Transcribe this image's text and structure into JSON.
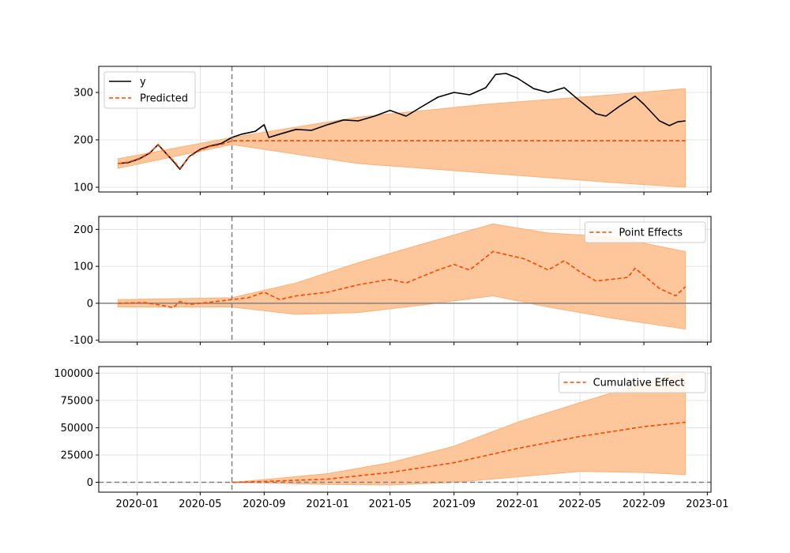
{
  "chart_data": [
    {
      "type": "line",
      "panel": "observed-vs-predicted",
      "title": "",
      "xlabel": "",
      "ylabel": "",
      "xlim": [
        "2019-10-19",
        "2023-01-08"
      ],
      "ylim": [
        90,
        355
      ],
      "yticks": [
        100,
        200,
        300
      ],
      "intervention_date": "2020-07-01",
      "grid": true,
      "legend": {
        "placement": "top-left",
        "entries": [
          "y",
          "Predicted"
        ]
      },
      "colors": {
        "y": "#000000",
        "predicted": "#ff4500",
        "band": "#fdc79b",
        "band_edge": "#fbb27a",
        "intervention": "#808080"
      },
      "series": [
        {
          "name": "y",
          "style": "solid",
          "x": [
            "2019-11-25",
            "2019-12-15",
            "2020-01-05",
            "2020-01-25",
            "2020-02-10",
            "2020-02-25",
            "2020-03-10",
            "2020-03-23",
            "2020-04-10",
            "2020-05-01",
            "2020-05-20",
            "2020-06-10",
            "2020-07-01",
            "2020-07-20",
            "2020-08-15",
            "2020-09-01",
            "2020-09-10",
            "2020-10-01",
            "2020-11-01",
            "2020-12-01",
            "2021-01-01",
            "2021-02-01",
            "2021-03-01",
            "2021-04-01",
            "2021-05-01",
            "2021-06-01",
            "2021-07-01",
            "2021-08-01",
            "2021-09-01",
            "2021-10-01",
            "2021-11-01",
            "2021-11-20",
            "2021-12-10",
            "2022-01-01",
            "2022-02-01",
            "2022-03-01",
            "2022-04-01",
            "2022-05-01",
            "2022-06-01",
            "2022-06-20",
            "2022-07-15",
            "2022-08-15",
            "2022-09-01",
            "2022-10-01",
            "2022-10-20",
            "2022-11-05",
            "2022-11-20"
          ],
          "values": [
            150,
            152,
            160,
            172,
            190,
            172,
            155,
            138,
            165,
            180,
            187,
            192,
            205,
            212,
            218,
            232,
            205,
            212,
            222,
            220,
            232,
            242,
            240,
            250,
            262,
            250,
            270,
            290,
            300,
            295,
            310,
            338,
            340,
            330,
            308,
            300,
            310,
            282,
            255,
            250,
            270,
            292,
            275,
            240,
            230,
            238,
            240
          ]
        },
        {
          "name": "Predicted",
          "style": "dashed",
          "x": [
            "2019-11-25",
            "2019-12-15",
            "2020-01-05",
            "2020-01-25",
            "2020-02-10",
            "2020-02-25",
            "2020-03-10",
            "2020-03-23",
            "2020-04-10",
            "2020-05-01",
            "2020-05-20",
            "2020-06-10",
            "2020-07-01",
            "2022-11-20"
          ],
          "values": [
            150,
            153,
            161,
            173,
            189,
            171,
            157,
            140,
            164,
            178,
            186,
            190,
            198,
            198
          ]
        }
      ],
      "band": {
        "x": [
          "2019-11-25",
          "2020-07-01",
          "2021-03-01",
          "2021-11-01",
          "2022-07-01",
          "2022-11-20"
        ],
        "lower": [
          140,
          190,
          150,
          130,
          110,
          100
        ],
        "upper": [
          160,
          205,
          248,
          275,
          295,
          308
        ]
      }
    },
    {
      "type": "line",
      "panel": "point-effects",
      "title": "",
      "xlabel": "",
      "ylabel": "",
      "xlim": [
        "2019-10-19",
        "2023-01-08"
      ],
      "ylim": [
        -105,
        235
      ],
      "yticks": [
        -100,
        0,
        100,
        200
      ],
      "intervention_date": "2020-07-01",
      "zero_line": true,
      "grid": true,
      "legend": {
        "placement": "top-right",
        "entries": [
          "Point Effects"
        ]
      },
      "series": [
        {
          "name": "Point Effects",
          "style": "dashed",
          "x": [
            "2019-11-25",
            "2020-01-15",
            "2020-02-15",
            "2020-03-10",
            "2020-03-23",
            "2020-04-10",
            "2020-05-15",
            "2020-07-01",
            "2020-08-01",
            "2020-09-01",
            "2020-10-01",
            "2020-11-01",
            "2021-01-01",
            "2021-03-01",
            "2021-05-01",
            "2021-06-01",
            "2021-08-01",
            "2021-09-01",
            "2021-10-01",
            "2021-11-15",
            "2021-12-15",
            "2022-01-15",
            "2022-03-01",
            "2022-04-01",
            "2022-05-01",
            "2022-06-01",
            "2022-08-01",
            "2022-08-15",
            "2022-10-01",
            "2022-11-01",
            "2022-11-20"
          ],
          "values": [
            0,
            2,
            -5,
            -12,
            5,
            -3,
            2,
            10,
            15,
            30,
            10,
            20,
            30,
            50,
            65,
            55,
            90,
            105,
            90,
            140,
            130,
            120,
            90,
            115,
            85,
            60,
            70,
            95,
            40,
            20,
            45
          ]
        }
      ],
      "band": {
        "x": [
          "2019-11-25",
          "2020-07-01",
          "2020-11-01",
          "2021-03-01",
          "2021-07-01",
          "2021-11-15",
          "2022-03-01",
          "2022-07-01",
          "2022-11-20"
        ],
        "lower": [
          -10,
          -10,
          -30,
          -25,
          -5,
          20,
          -10,
          -40,
          -70
        ],
        "upper": [
          10,
          15,
          55,
          110,
          160,
          215,
          190,
          180,
          140
        ]
      }
    },
    {
      "type": "line",
      "panel": "cumulative-effect",
      "title": "",
      "xlabel": "",
      "ylabel": "",
      "xlim": [
        "2019-10-19",
        "2023-01-08"
      ],
      "ylim": [
        -9000,
        106000
      ],
      "yticks": [
        0,
        25000,
        50000,
        75000,
        100000
      ],
      "xticks": [
        "2020-01",
        "2020-05",
        "2020-09",
        "2021-01",
        "2021-05",
        "2021-09",
        "2022-01",
        "2022-05",
        "2022-09",
        "2023-01"
      ],
      "intervention_date": "2020-07-01",
      "zero_line": true,
      "grid": true,
      "legend": {
        "placement": "top-right",
        "entries": [
          "Cumulative Effect"
        ]
      },
      "series": [
        {
          "name": "Cumulative Effect",
          "style": "dashed",
          "x": [
            "2020-07-01",
            "2020-09-01",
            "2021-01-01",
            "2021-05-01",
            "2021-09-01",
            "2022-01-01",
            "2022-05-01",
            "2022-09-01",
            "2022-11-20"
          ],
          "values": [
            0,
            800,
            3000,
            9000,
            18000,
            31000,
            42000,
            51000,
            55000
          ]
        }
      ],
      "band": {
        "x": [
          "2020-07-01",
          "2020-09-01",
          "2021-01-01",
          "2021-05-01",
          "2021-09-01",
          "2022-01-01",
          "2022-05-01",
          "2022-09-01",
          "2022-11-20"
        ],
        "lower": [
          0,
          -500,
          -2000,
          -2500,
          0,
          5000,
          10000,
          9000,
          7000
        ],
        "upper": [
          0,
          2500,
          8000,
          18000,
          33000,
          55000,
          73000,
          91000,
          100000
        ]
      }
    }
  ]
}
